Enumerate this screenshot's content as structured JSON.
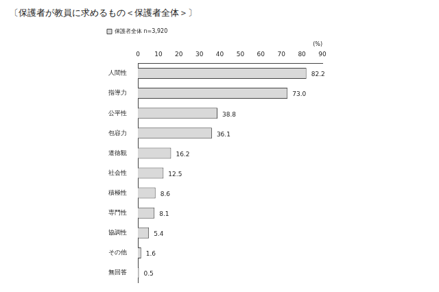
{
  "chart_data": {
    "type": "bar",
    "orientation": "horizontal",
    "title": "〔保護者が教員に求めるもの＜保護者全体＞〕",
    "x_label": "(%)",
    "categories": [
      "人間性",
      "指導力",
      "公平性",
      "包容力",
      "道徳観",
      "社会性",
      "積極性",
      "専門性",
      "協調性",
      "その他",
      "無回答"
    ],
    "series": [
      {
        "name": "保護者全体 n=3,920",
        "color": "#d9d9d9",
        "values": [
          82.2,
          73.0,
          38.8,
          36.1,
          16.2,
          12.5,
          8.6,
          8.1,
          5.4,
          1.6,
          0.5
        ],
        "value_labels": [
          "82.2",
          "73.0",
          "38.8",
          "36.1",
          "16.2",
          "12.5",
          "8.6",
          "8.1",
          "5.4",
          "1.6",
          "0.5"
        ]
      }
    ],
    "xlim": [
      0,
      90
    ],
    "xticks": [
      0,
      10,
      20,
      30,
      40,
      50,
      60,
      70,
      80,
      90
    ],
    "grid": false,
    "legend": "top-left",
    "data_labels": true
  }
}
